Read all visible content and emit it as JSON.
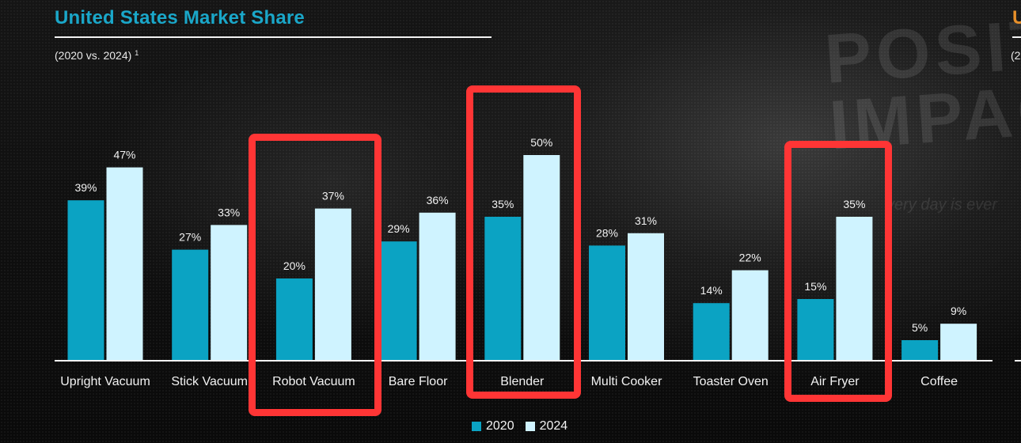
{
  "header": {
    "title": "United States Market Share",
    "subtitle": "(2020 vs. 2024)",
    "footnote_marker": "1",
    "next_panel_title_fragment": "U",
    "next_panel_subtitle_fragment": "(2"
  },
  "background_text": {
    "large": "POSITI\nIMPACT",
    "small": "very day is ever"
  },
  "colors": {
    "series_2020": "#0ba3c3",
    "series_2024": "#cff3ff",
    "title": "#1aa7c9",
    "highlight_box": "#ff3535"
  },
  "legend": {
    "items": [
      {
        "label": "2020",
        "color": "#0ba3c3"
      },
      {
        "label": "2024",
        "color": "#cff3ff"
      }
    ]
  },
  "highlights": [
    "Robot Vacuum",
    "Blender",
    "Air Fryer"
  ],
  "chart_data": {
    "type": "bar",
    "title": "United States Market Share",
    "subtitle": "(2020 vs. 2024)",
    "xlabel": "",
    "ylabel": "",
    "ylim": [
      0,
      60
    ],
    "grid": false,
    "legend_position": "bottom-center",
    "categories": [
      "Upright Vacuum",
      "Stick Vacuum",
      "Robot Vacuum",
      "Bare Floor",
      "Blender",
      "Multi Cooker",
      "Toaster Oven",
      "Air Fryer",
      "Coffee"
    ],
    "series": [
      {
        "name": "2020",
        "values": [
          39,
          27,
          20,
          29,
          35,
          28,
          14,
          15,
          5
        ],
        "labels": [
          "39%",
          "27%",
          "20%",
          "29%",
          "35%",
          "28%",
          "14%",
          "15%",
          "5%"
        ]
      },
      {
        "name": "2024",
        "values": [
          47,
          33,
          37,
          36,
          50,
          31,
          22,
          35,
          9
        ],
        "labels": [
          "47%",
          "33%",
          "37%",
          "36%",
          "50%",
          "31%",
          "22%",
          "35%",
          "9%"
        ]
      }
    ]
  }
}
